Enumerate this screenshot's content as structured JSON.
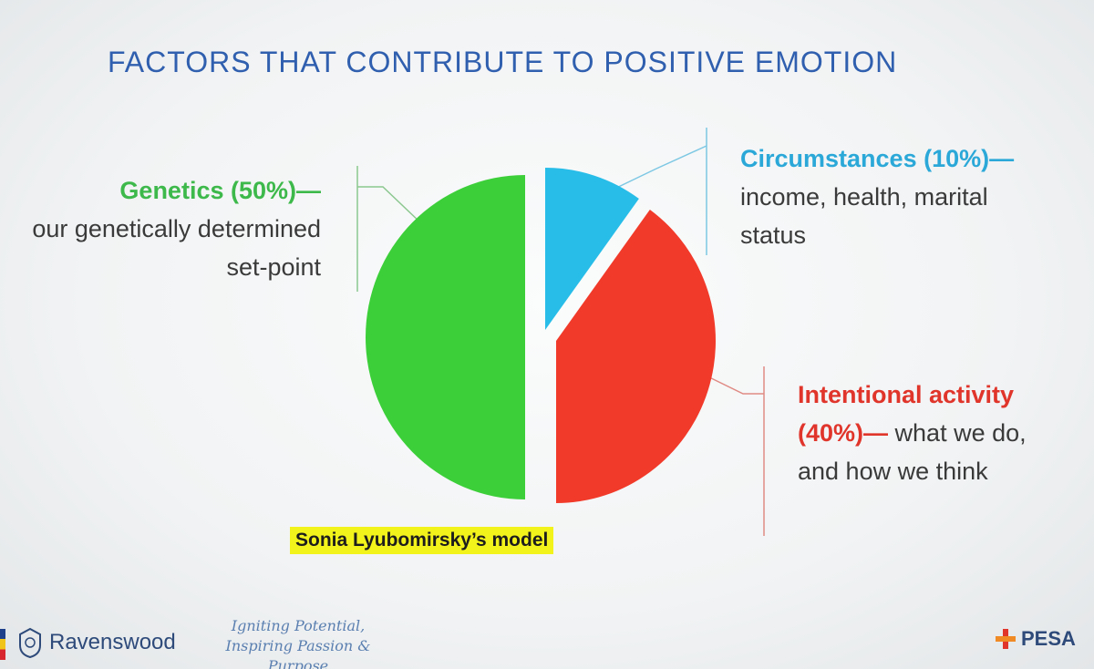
{
  "title": "FACTORS THAT CONTRIBUTE TO POSITIVE EMOTION",
  "labels": {
    "genetics": {
      "head": "Genetics (50%)—",
      "body": "our genetically determined set-point",
      "color": "#3db84a"
    },
    "circumstances": {
      "head": "Circumstances (10%)—",
      "body": "income, health, marital status",
      "color": "#2ba8d8"
    },
    "intentional": {
      "head": "Intentional activity (40%)—",
      "body": "what we do, and how we think",
      "color": "#e0352b"
    }
  },
  "caption": "Sonia Lyubomirsky’s model",
  "footer": {
    "school": "Ravenswood",
    "tagline_1": "Igniting Potential,",
    "tagline_2": "Inspiring Passion & Purpose",
    "partner": "PESA"
  },
  "chart_data": {
    "type": "pie",
    "categories": [
      "Genetics",
      "Circumstances",
      "Intentional activity"
    ],
    "values": [
      50,
      10,
      40
    ],
    "colors": [
      "#3ccf3a",
      "#27bde8",
      "#f23a2a"
    ],
    "exploded": [
      "Circumstances",
      "Intentional activity"
    ]
  }
}
